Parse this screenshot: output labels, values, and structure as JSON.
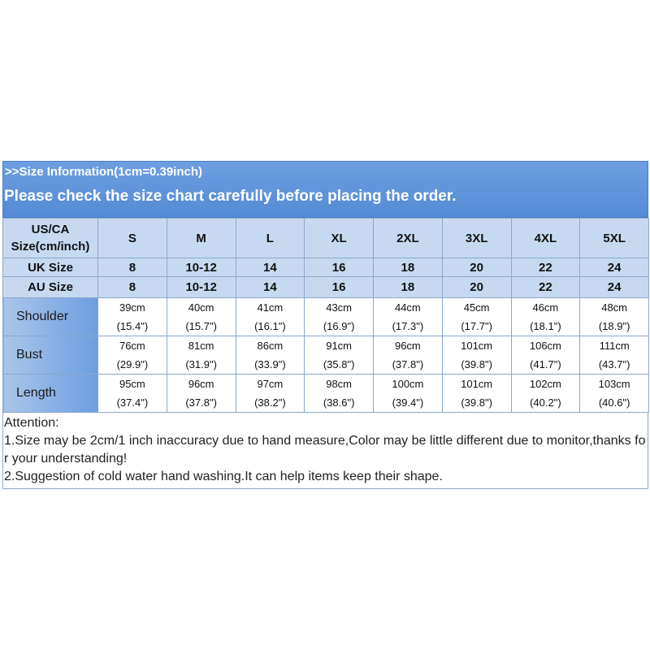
{
  "header": {
    "line1": ">>Size Information(1cm=0.39inch)",
    "line2": "Please check the size chart carefully before placing the order."
  },
  "table": {
    "corner": [
      "US/CA",
      "Size(cm/inch)"
    ],
    "sizes": [
      "S",
      "M",
      "L",
      "XL",
      "2XL",
      "3XL",
      "4XL",
      "5XL"
    ],
    "size_rows": [
      {
        "label": "UK Size",
        "values": [
          "8",
          "10-12",
          "14",
          "16",
          "18",
          "20",
          "22",
          "24"
        ]
      },
      {
        "label": "AU Size",
        "values": [
          "8",
          "10-12",
          "14",
          "16",
          "18",
          "20",
          "22",
          "24"
        ]
      }
    ],
    "measurements": [
      {
        "label": "Shoulder",
        "cm": [
          "39cm",
          "40cm",
          "41cm",
          "43cm",
          "44cm",
          "45cm",
          "46cm",
          "48cm"
        ],
        "inch": [
          "(15.4\")",
          "(15.7\")",
          "(16.1\")",
          "(16.9\")",
          "(17.3\")",
          "(17.7\")",
          "(18.1\")",
          "(18.9\")"
        ]
      },
      {
        "label": "Bust",
        "cm": [
          "76cm",
          "81cm",
          "86cm",
          "91cm",
          "96cm",
          "101cm",
          "106cm",
          "111cm"
        ],
        "inch": [
          "(29.9\")",
          "(31.9\")",
          "(33.9\")",
          "(35.8\")",
          "(37.8\")",
          "(39.8\")",
          "(41.7\")",
          "(43.7\")"
        ]
      },
      {
        "label": "Length",
        "cm": [
          "95cm",
          "96cm",
          "97cm",
          "98cm",
          "100cm",
          "101cm",
          "102cm",
          "103cm"
        ],
        "inch": [
          "(37.4\")",
          "(37.8\")",
          "(38.2\")",
          "(38.6\")",
          "(39.4\")",
          "(39.8\")",
          "(40.2\")",
          "(40.6\")"
        ]
      }
    ]
  },
  "notes": {
    "title": "Attention:",
    "items": [
      "1.Size may be 2cm/1 inch inaccuracy due to hand measure,Color may be little different due to monitor,thanks for your understanding!",
      "2.Suggestion of cold water hand washing.It can help items keep their shape."
    ]
  }
}
